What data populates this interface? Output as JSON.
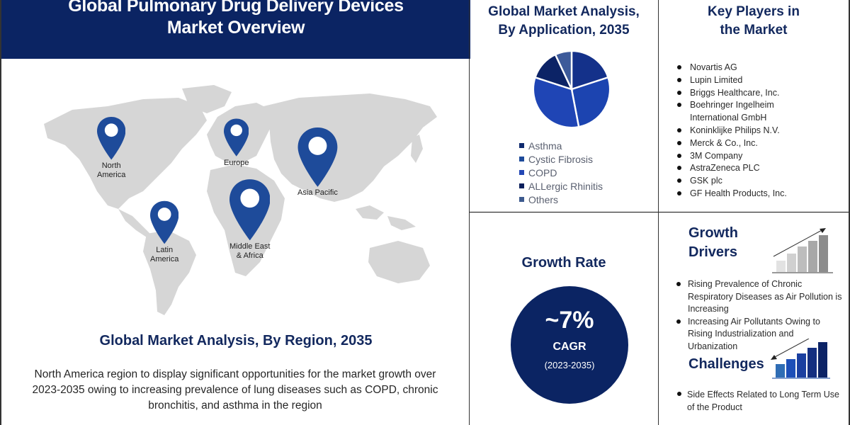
{
  "header": {
    "title_line1": "Global Pulmonary Drug Delivery Devices",
    "title_line2": "Market Overview"
  },
  "colors": {
    "navy": "#0b2463",
    "heading": "#12285e",
    "map_land": "#d4d4d4",
    "pin": "#1e4b9a"
  },
  "region": {
    "title": "Global Market Analysis, By Region, 2035",
    "description": "North America region to display significant opportunities for the market growth over 2023-2035  owing to increasing prevalence of lung diseases such as COPD, chronic bronchitis, and asthma in the region",
    "pins": [
      {
        "label_line1": "North",
        "label_line2": "America",
        "icon": "map-pin-icon"
      },
      {
        "label_line1": "Europe",
        "label_line2": "",
        "icon": "map-pin-icon"
      },
      {
        "label_line1": "Asia Pacific",
        "label_line2": "",
        "icon": "map-pin-icon"
      },
      {
        "label_line1": "Middle East",
        "label_line2": "& Africa",
        "icon": "map-pin-icon"
      },
      {
        "label_line1": "Latin",
        "label_line2": "America",
        "icon": "map-pin-icon"
      }
    ]
  },
  "application": {
    "title_line1": "Global Market Analysis,",
    "title_line2": "By Application, 2035",
    "legend": [
      {
        "label": "Asthma",
        "color": "#0f2a6e"
      },
      {
        "label": "Cystic Fibrosis",
        "color": "#1d4a9a"
      },
      {
        "label": "COPD",
        "color": "#2347b5"
      },
      {
        "label": "ALLergic Rhinitis",
        "color": "#0a1f5c"
      },
      {
        "label": "Others",
        "color": "#3d5a8e"
      }
    ]
  },
  "chart_data": {
    "type": "pie",
    "title": "Global Market Analysis, By Application, 2035",
    "categories": [
      "Asthma",
      "Cystic Fibrosis",
      "COPD",
      "ALLergic Rhinitis",
      "Others"
    ],
    "values": [
      20,
      27,
      33,
      13,
      7
    ],
    "colors": [
      "#14318a",
      "#1c44b0",
      "#1f45b5",
      "#0c2366",
      "#3d5a9a"
    ],
    "legend_position": "bottom",
    "note": "Slice percentages estimated from pie geometry; no data labels shown"
  },
  "growth": {
    "title": "Growth Rate",
    "value": "~7%",
    "label": "CAGR",
    "period": "(2023-2035)"
  },
  "key_players": {
    "title_line1": "Key Players in",
    "title_line2": "the Market",
    "items": [
      "Novartis AG",
      "Lupin Limited",
      "Briggs Healthcare, Inc.",
      "Boehringer Ingelheim International GmbH",
      "Koninklijke Philips N.V.",
      "Merck & Co., Inc.",
      "3M Company",
      "AstraZeneca PLC",
      "GSK plc",
      "GF Health Products, Inc."
    ]
  },
  "drivers": {
    "title_line1": "Growth",
    "title_line2": "Drivers",
    "items": [
      "Rising Prevalence of Chronic Respiratory Diseases as Air Pollution is Increasing",
      "Increasing Air Pollutants Owing to Rising Industrialization and Urbanization"
    ]
  },
  "challenges": {
    "title": "Challenges",
    "items": [
      "Side Effects Related to Long Term Use of the Product"
    ]
  }
}
